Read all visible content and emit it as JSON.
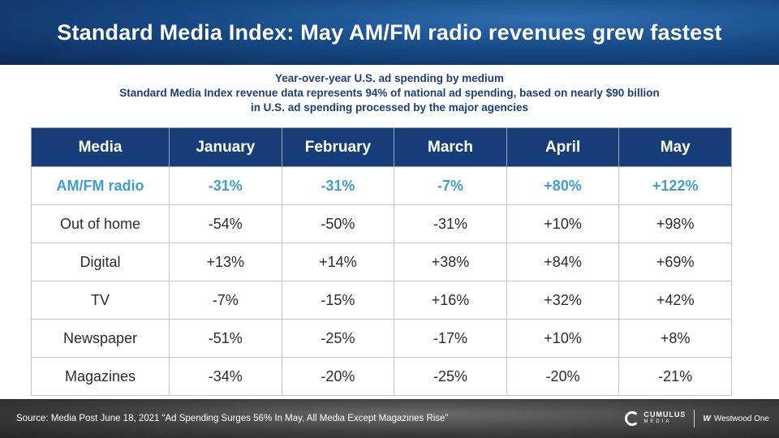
{
  "header": {
    "title": "Standard Media Index: May AM/FM radio revenues grew fastest"
  },
  "subtitle": {
    "line1": "Year-over-year U.S. ad spending by medium",
    "line2": "Standard Media Index revenue data represents 94% of national ad spending, based on nearly $90 billion",
    "line3": "in U.S. ad spending processed by the major agencies"
  },
  "table": {
    "headers": [
      "Media",
      "January",
      "February",
      "March",
      "April",
      "May"
    ],
    "rows": [
      [
        "AM/FM radio",
        "-31%",
        "-31%",
        "-7%",
        "+80%",
        "+122%"
      ],
      [
        "Out of home",
        "-54%",
        "-50%",
        "-31%",
        "+10%",
        "+98%"
      ],
      [
        "Digital",
        "+13%",
        "+14%",
        "+38%",
        "+84%",
        "+69%"
      ],
      [
        "TV",
        "-7%",
        "-15%",
        "+16%",
        "+32%",
        "+42%"
      ],
      [
        "Newspaper",
        "-51%",
        "-25%",
        "-17%",
        "+10%",
        "+8%"
      ],
      [
        "Magazines",
        "-34%",
        "-20%",
        "-25%",
        "-20%",
        "-21%"
      ]
    ]
  },
  "footer": {
    "source": "Source: Media Post June 18, 2021 “Ad Spending Surges 56% In May, All Media Except Magazines Rise”",
    "logo_cumulus": "CUMULUS",
    "logo_cumulus_sub": "MEDIA",
    "logo_westwood_mark": "W",
    "logo_westwood": "Westwood One"
  },
  "colors": {
    "header_bg": "#174a86",
    "table_header_bg": "#173e78",
    "highlight_text": "#3d9dd7",
    "subtitle_text": "#1a3f80"
  }
}
